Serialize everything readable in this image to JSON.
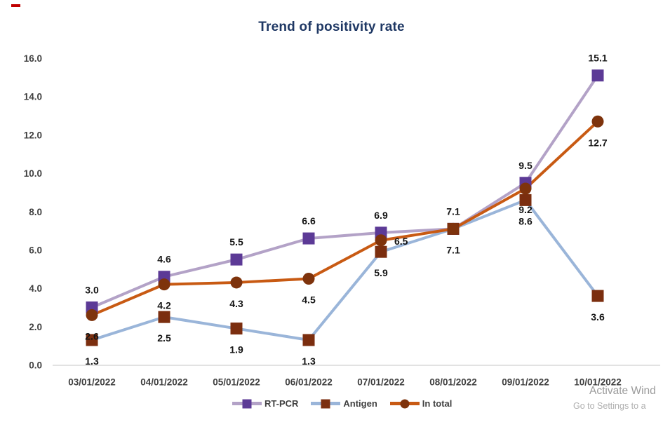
{
  "chart_data": {
    "type": "line",
    "title": "Trend of positivity rate",
    "categories": [
      "03/01/2022",
      "04/01/2022",
      "05/01/2022",
      "06/01/2022",
      "07/01/2022",
      "08/01/2022",
      "09/01/2022",
      "10/01/2022"
    ],
    "series": [
      {
        "name": "RT-PCR",
        "values": [
          3.0,
          4.6,
          5.5,
          6.6,
          6.9,
          7.1,
          9.5,
          15.1
        ],
        "line_color": "#B3A2C7",
        "marker_color": "#5C3A96",
        "marker": "square",
        "label_positions": [
          "above",
          "above",
          "above",
          "above",
          "above",
          "above",
          "above",
          "above"
        ]
      },
      {
        "name": "Antigen",
        "values": [
          1.3,
          2.5,
          1.9,
          1.3,
          5.9,
          7.1,
          8.6,
          3.6
        ],
        "line_color": "#9AB5D9",
        "marker_color": "#7B2E0F",
        "marker": "square",
        "label_positions": [
          "below",
          "below",
          "below",
          "below",
          "below",
          "below",
          "below",
          "below"
        ]
      },
      {
        "name": "In total",
        "values": [
          2.6,
          4.2,
          4.3,
          4.5,
          6.5,
          7.1,
          9.2,
          12.7
        ],
        "line_color": "#C85A13",
        "marker_color": "#7E330C",
        "marker": "circle",
        "label_positions": [
          "below",
          "below",
          "below",
          "below",
          "right",
          "hidden",
          "below",
          "below"
        ]
      }
    ],
    "ylim": [
      0,
      16
    ],
    "ytick_step": 2,
    "ytick_format": "0.0",
    "grid": false,
    "legend_position": "bottom"
  },
  "watermark": {
    "line1": "Activate Wind",
    "line2": "Go to Settings to a"
  },
  "colors": {
    "title": "#1F3864",
    "axis_text": "#3F3F3F",
    "data_label": "#141414",
    "axis_line": "#D9D9D9",
    "watermark_primary": "#9B9B9B",
    "watermark_secondary": "#AFAFAF",
    "red_mark": "#C00000",
    "background": "#FFFFFF"
  }
}
